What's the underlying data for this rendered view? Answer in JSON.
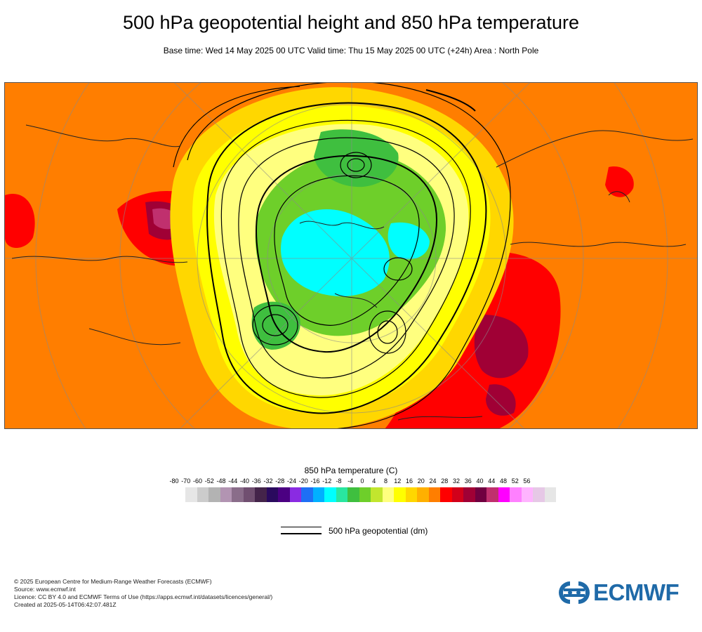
{
  "header": {
    "title": "500 hPa geopotential height and 850 hPa temperature",
    "subtitle": "Base time: Wed 14 May 2025 00 UTC Valid time: Thu 15 May 2025 00 UTC (+24h) Area : North Pole"
  },
  "legend": {
    "title": "850 hPa temperature (C)",
    "tick_labels": [
      "-80",
      "-70",
      "-60",
      "-52",
      "-48",
      "-44",
      "-40",
      "-36",
      "-32",
      "-28",
      "-24",
      "-20",
      "-16",
      "-12",
      "-8",
      "-4",
      "0",
      "4",
      "8",
      "12",
      "16",
      "20",
      "24",
      "28",
      "32",
      "36",
      "40",
      "44",
      "48",
      "52",
      "56"
    ],
    "colors": [
      "#e6e6e6",
      "#cccccc",
      "#b3b3b3",
      "#b294b2",
      "#8a6d8a",
      "#704f70",
      "#44244a",
      "#2a0a5e",
      "#4b0082",
      "#8a2be2",
      "#1e6ff5",
      "#00b0ff",
      "#00ffff",
      "#29e6a0",
      "#3fbf3f",
      "#6ecf2a",
      "#c2e62e",
      "#ffff7f",
      "#ffff00",
      "#ffd700",
      "#ffb000",
      "#ff7e00",
      "#ff0000",
      "#d2001a",
      "#a00035",
      "#700040",
      "#c0306e",
      "#ff00ff",
      "#ff80ff",
      "#ffb4ff",
      "#e6c8e6",
      "#e6e6e6"
    ],
    "contour_label": "500 hPa geopotential (dm)"
  },
  "footer": {
    "credits": [
      "© 2025 European Centre for Medium-Range Weather Forecasts (ECMWF)",
      "Source: www.ecmwf.int",
      "Licence: CC BY 4.0 and ECMWF Terms of Use (https://apps.ecmwf.int/datasets/licences/general/)",
      "Created at 2025-05-14T06:42:07.481Z"
    ],
    "logo_text": "ECMWF",
    "logo_color": "#1f6aa8"
  }
}
